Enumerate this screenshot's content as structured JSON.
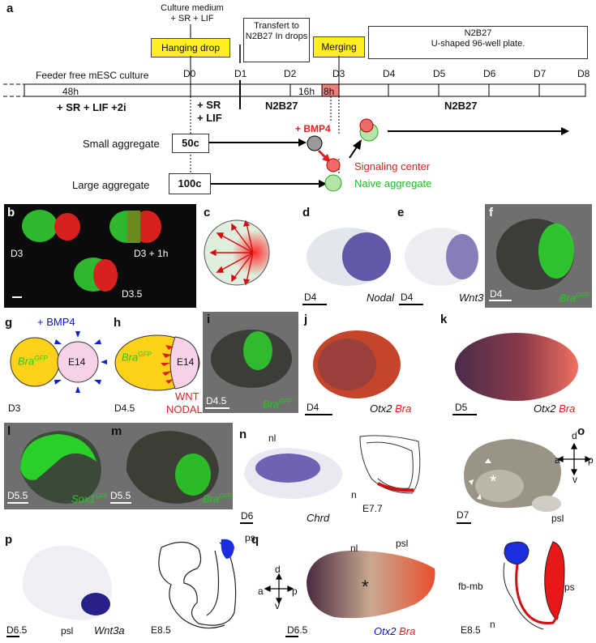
{
  "panel_labels": {
    "a": "a",
    "b": "b",
    "c": "c",
    "d": "d",
    "e": "e",
    "f": "f",
    "g": "g",
    "h": "h",
    "i": "i",
    "j": "j",
    "k": "k",
    "l": "l",
    "m": "m",
    "n": "n",
    "o": "o",
    "p": "p",
    "q": "q"
  },
  "timeline": {
    "culture_medium": "Culture medium",
    "sr_lif": "+ SR + LIF",
    "hanging_drop": "Hanging drop",
    "transfer": "Transfert to N2B27 In drops",
    "merging": "Merging",
    "n2b27_plate_1": "N2B27",
    "n2b27_plate_2": "U-shaped 96-well plate.",
    "feeder_free": "Feeder free mESC culture",
    "days": [
      "D0",
      "D1",
      "D2",
      "D3",
      "D4",
      "D5",
      "D6",
      "D7",
      "D8"
    ],
    "h48": "48h",
    "h16": "16h",
    "h8": "8h",
    "pre_medium": "+ SR + LIF +2i",
    "sr": "+ SR",
    "lif": "+ LIF",
    "n2b27_left": "N2B27",
    "n2b27_right": "N2B27",
    "bmp4": "+ BMP4",
    "small_aggregate": "Small aggregate",
    "large_aggregate": "Large aggregate",
    "c50": "50c",
    "c100": "100c",
    "signaling_center": "Signaling center",
    "naive_aggregate": "Naive aggregate"
  },
  "b": {
    "d3": "D3",
    "d3_1h": "D3 + 1h",
    "d35": "D3.5"
  },
  "d": {
    "day": "D4",
    "gene": "Nodal"
  },
  "e": {
    "day": "D4",
    "gene": "Wnt3"
  },
  "f": {
    "day": "D4",
    "gene": "Bra",
    "sup": "GFP"
  },
  "g": {
    "bmp4": "+ BMP4",
    "bra": "Bra",
    "sup": "GFP",
    "e14": "E14",
    "day": "D3"
  },
  "h": {
    "bra": "Bra",
    "sup": "GFP",
    "e14": "E14",
    "wnt": "WNT",
    "nodal": "NODAL",
    "day": "D4.5"
  },
  "i": {
    "day": "D4.5",
    "gene": "Bra",
    "sup": "GFP"
  },
  "j": {
    "day": "D4",
    "g1": "Otx2",
    "g2": "Bra"
  },
  "k": {
    "day": "D5",
    "g1": "Otx2",
    "g2": "Bra"
  },
  "l": {
    "day": "D5.5",
    "gene": "Sox1",
    "sup": "GFP"
  },
  "m": {
    "day": "D5.5",
    "gene": "Bra",
    "sup": "GFP"
  },
  "n": {
    "nl": "nl",
    "day": "D6",
    "gene": "Chrd",
    "stage": "E7.7",
    "n": "n"
  },
  "o": {
    "d": "d",
    "a": "a",
    "p": "p",
    "v": "v",
    "day": "D7",
    "psl": "psl"
  },
  "p": {
    "day": "D6.5",
    "psl": "psl",
    "gene": "Wnt3a",
    "stage": "E8.5",
    "ps": "ps"
  },
  "q": {
    "d": "d",
    "a": "a",
    "p": "p",
    "v": "v",
    "nl": "nl",
    "psl": "psl",
    "day": "D6.5",
    "g1": "Otx2",
    "g2": "Bra",
    "stage": "E8.5",
    "fbmb": "fb-mb",
    "ps": "ps",
    "n": "n"
  }
}
